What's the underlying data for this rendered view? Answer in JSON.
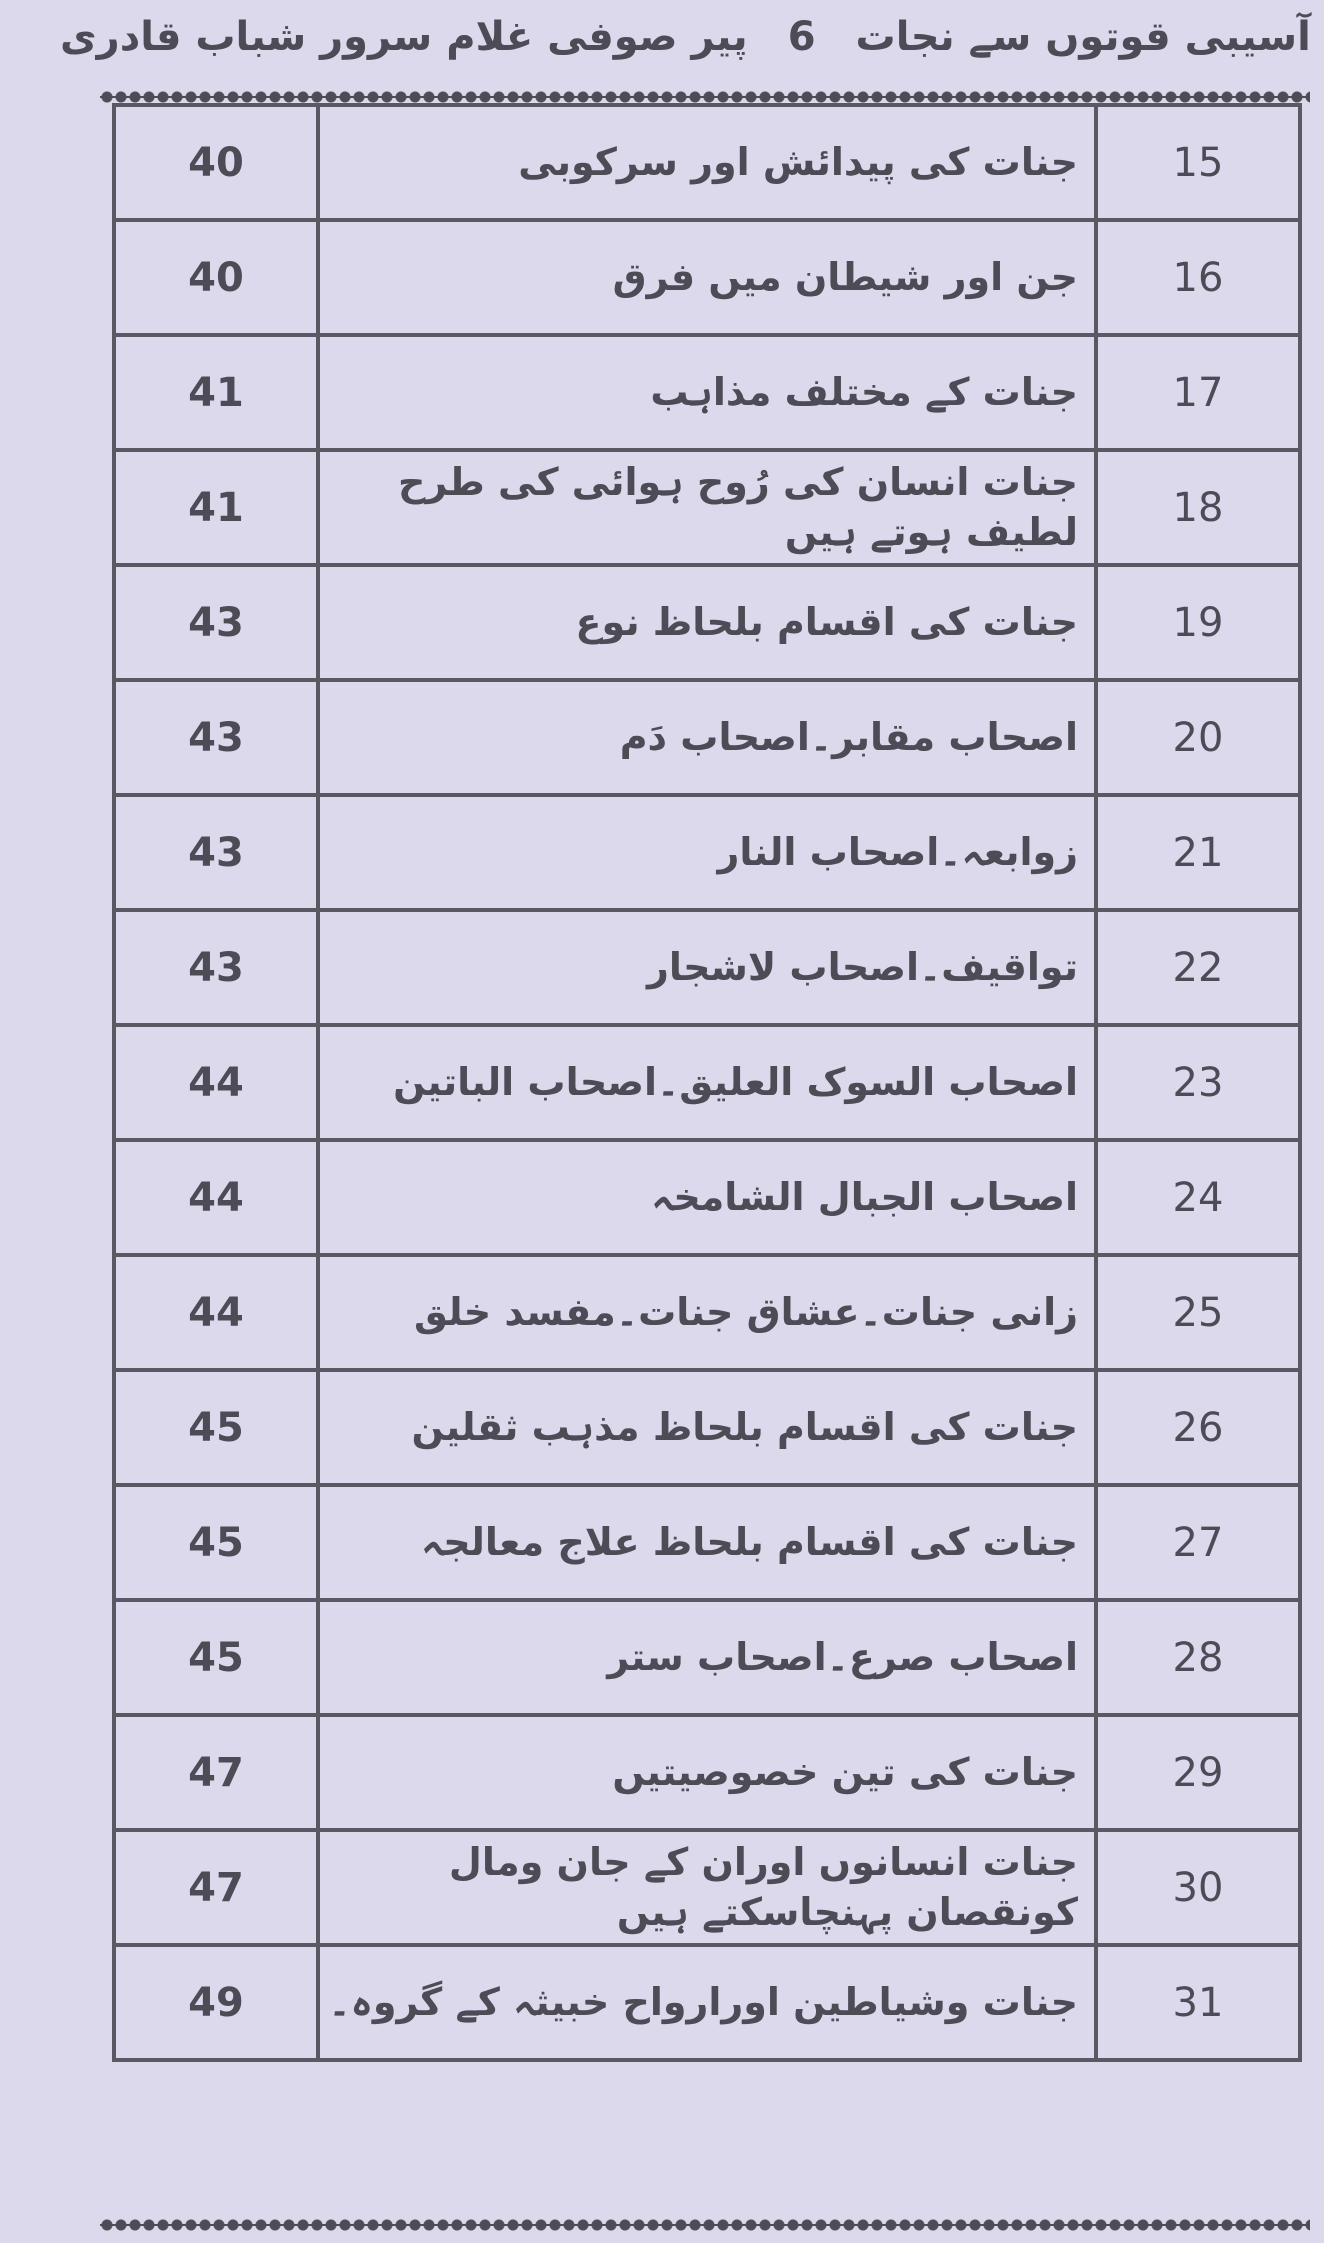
{
  "header": {
    "book_title": "آسیبی قوتوں سے نجات",
    "page_number": "6",
    "author": "پیر صوفی غلام سرور شباب قادری"
  },
  "toc": [
    {
      "num": "15",
      "title": "جنات کی پیدائش اور سرکوبی",
      "page": "40"
    },
    {
      "num": "16",
      "title": "جن اور شیطان میں فرق",
      "page": "40"
    },
    {
      "num": "17",
      "title": "جنات کے مختلف مذاہب",
      "page": "41"
    },
    {
      "num": "18",
      "title": "جنات انسان کی رُوح ہوائی کی طرح لطیف ہوتے ہیں",
      "page": "41"
    },
    {
      "num": "19",
      "title": "جنات کی اقسام بلحاظ نوع",
      "page": "43"
    },
    {
      "num": "20",
      "title": "اصحاب مقابر۔اصحاب دَم",
      "page": "43"
    },
    {
      "num": "21",
      "title": "زوابعہ۔اصحاب النار",
      "page": "43"
    },
    {
      "num": "22",
      "title": "تواقیف۔اصحاب لاشجار",
      "page": "43"
    },
    {
      "num": "23",
      "title": "اصحاب السوک العلیق۔اصحاب الباتین",
      "page": "44"
    },
    {
      "num": "24",
      "title": "اصحاب الجبال الشامخہ",
      "page": "44"
    },
    {
      "num": "25",
      "title": "زانی جنات۔عشاق جنات۔مفسد خلق",
      "page": "44"
    },
    {
      "num": "26",
      "title": "جنات کی اقسام بلحاظ مذہب ثقلین",
      "page": "45"
    },
    {
      "num": "27",
      "title": "جنات کی اقسام بلحاظ علاج معالجہ",
      "page": "45"
    },
    {
      "num": "28",
      "title": "اصحاب صرع۔اصحاب ستر",
      "page": "45"
    },
    {
      "num": "29",
      "title": "جنات کی تین خصوصیتیں",
      "page": "47"
    },
    {
      "num": "30",
      "title": "جنات انسانوں اوران کے جان ومال کونقصان پہنچاسکتے ہیں",
      "page": "47"
    },
    {
      "num": "31",
      "title": "جنات وشیاطین اورارواح خبیثہ کے گروہ۔",
      "page": "49"
    }
  ]
}
